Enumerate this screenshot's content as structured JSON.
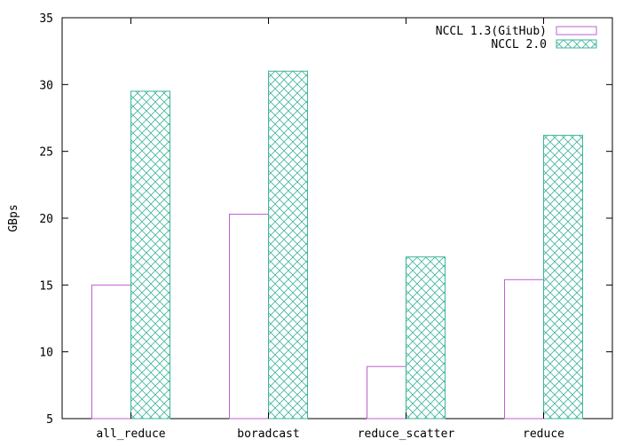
{
  "chart_data": {
    "type": "bar",
    "title": "",
    "xlabel": "",
    "ylabel": "GBps",
    "ylim": [
      5,
      35
    ],
    "yticks": [
      5,
      10,
      15,
      20,
      25,
      30,
      35
    ],
    "grid": false,
    "legend_position": "top-right",
    "categories": [
      "all_reduce",
      "boradcast",
      "reduce_scatter",
      "reduce"
    ],
    "series": [
      {
        "name": "NCCL 1.3(GitHub)",
        "values": [
          15.0,
          20.3,
          8.9,
          15.4
        ],
        "color": "#c05fd0",
        "pattern": "empty"
      },
      {
        "name": "NCCL 2.0",
        "values": [
          29.5,
          31.0,
          17.1,
          26.2
        ],
        "color": "#3cb59a",
        "pattern": "crosshatch"
      }
    ]
  }
}
